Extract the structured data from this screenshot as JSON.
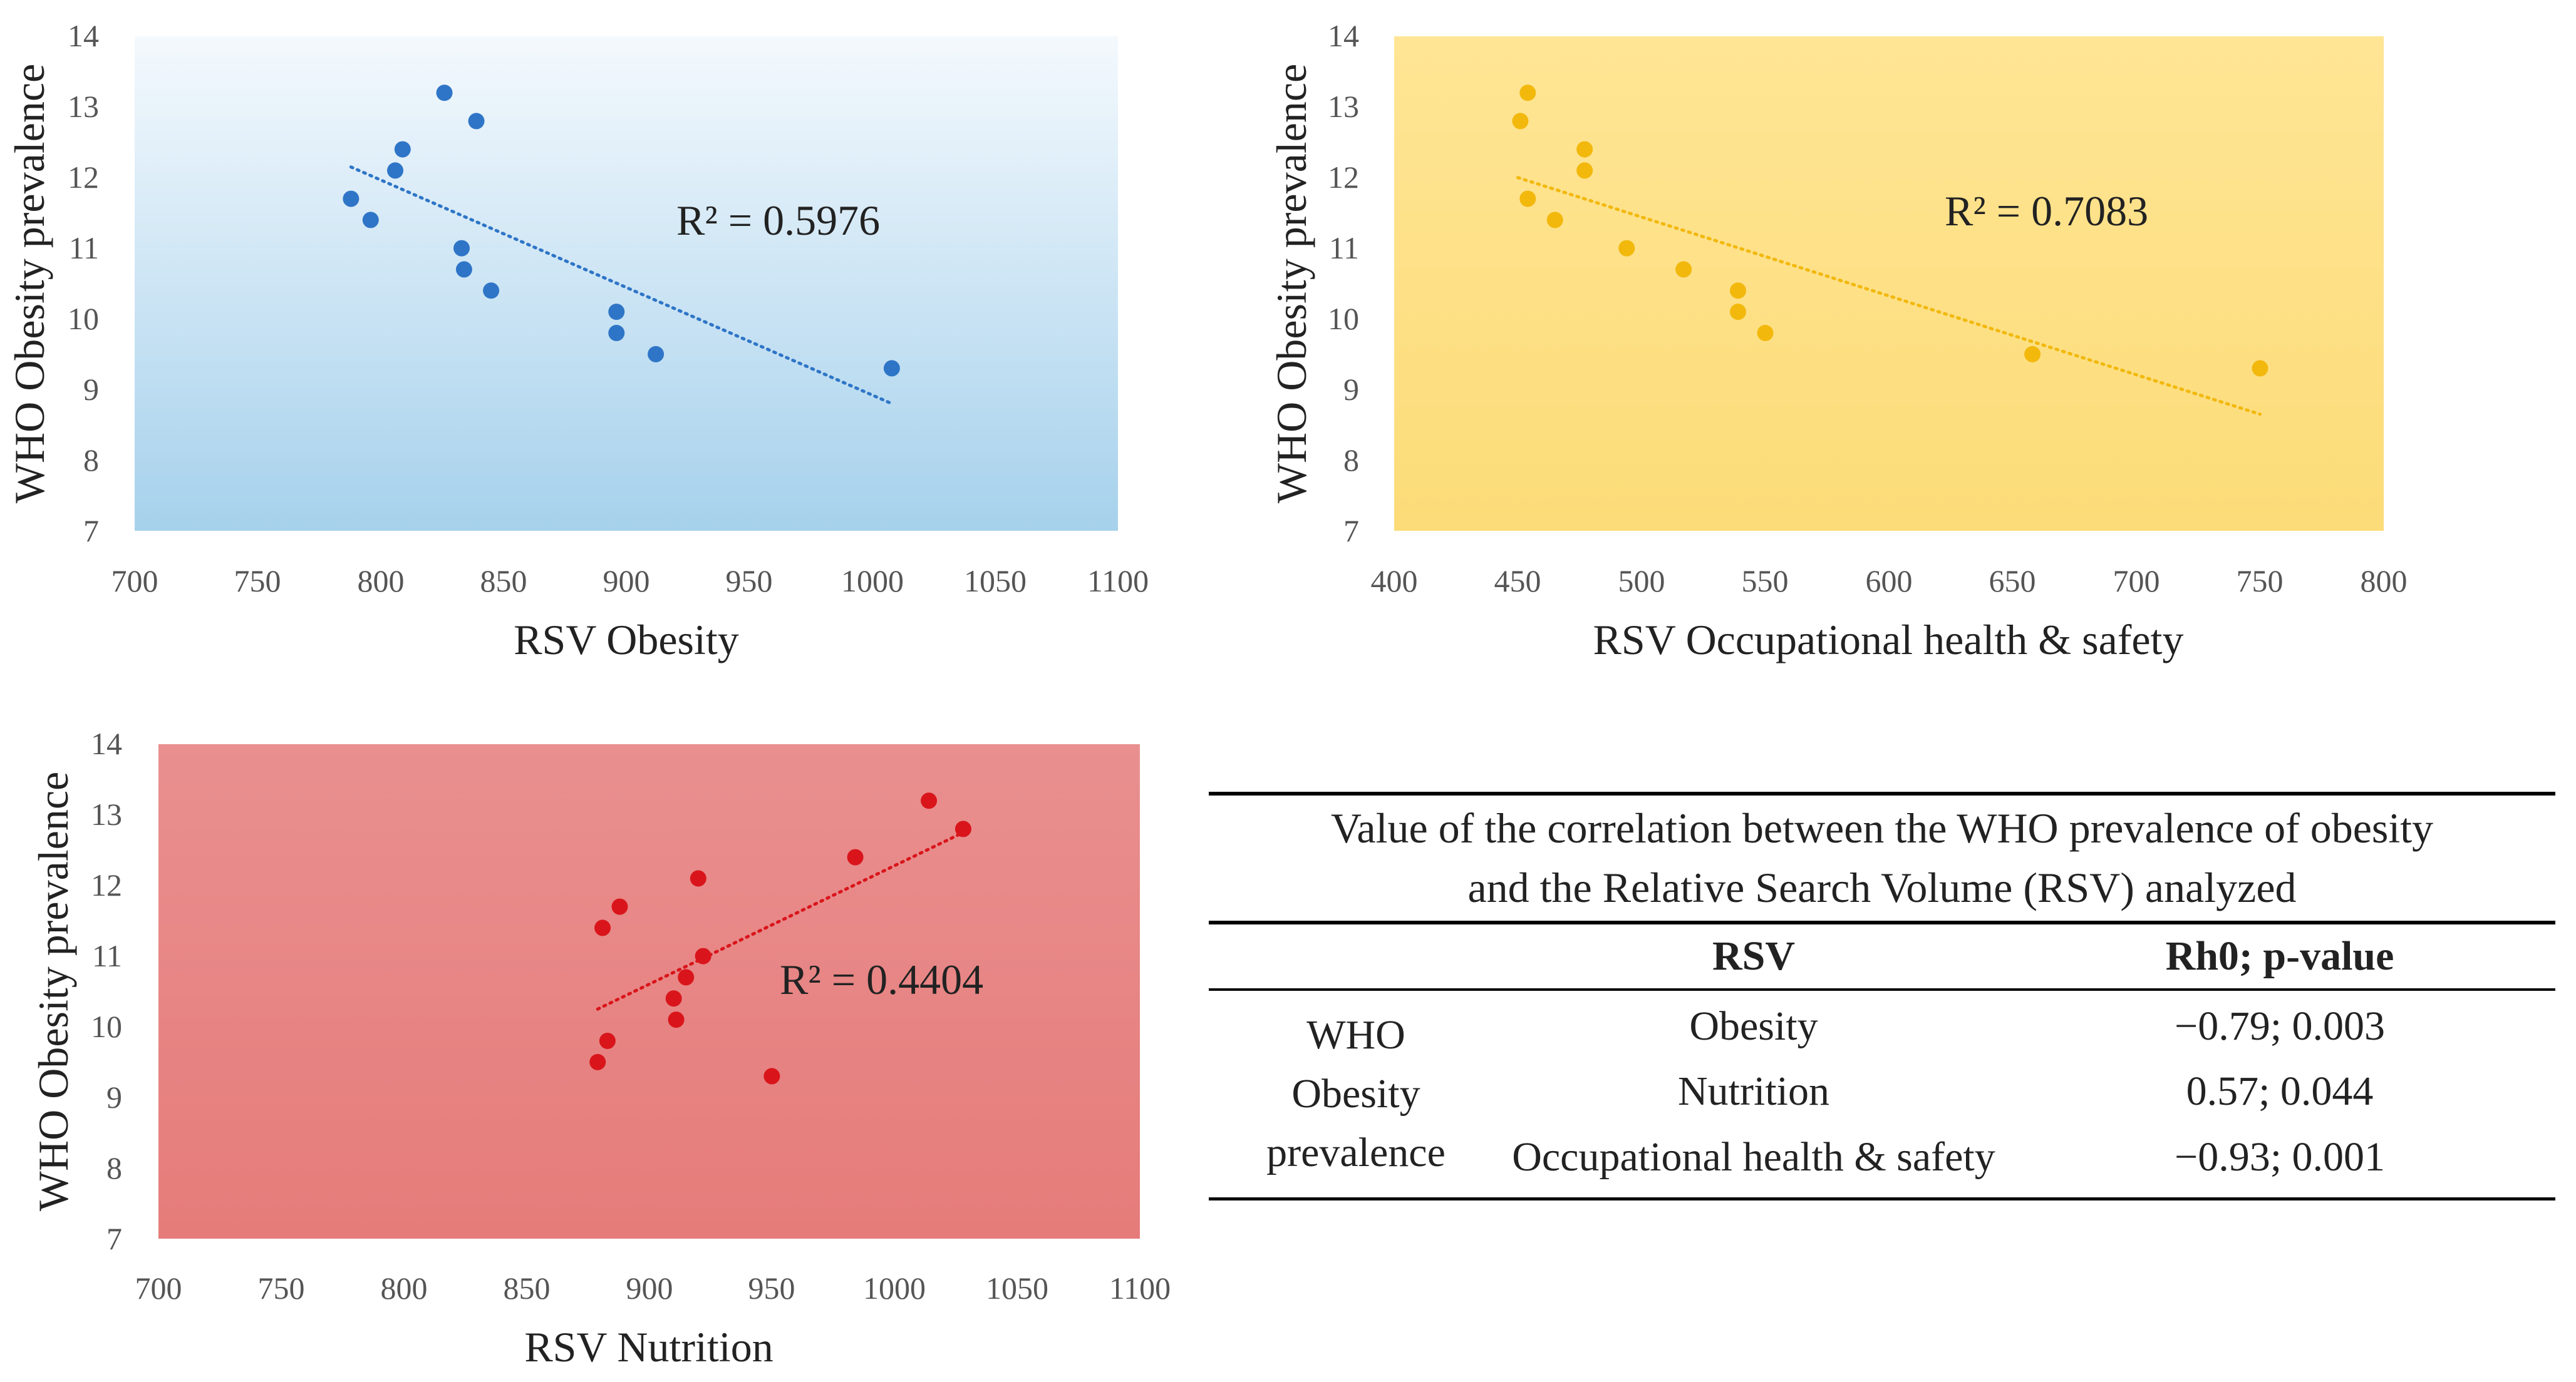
{
  "colors": {
    "blue_marker": "#2E75C7",
    "blue_bg_top": "#F4F9FD",
    "blue_bg_bottom": "#A6D1EC",
    "yellow_marker": "#F2B80C",
    "yellow_bg_top": "#FFE595",
    "yellow_bg_bottom": "#FCDC78",
    "red_marker": "#D9151B",
    "red_bg_top": "#E98F8F",
    "red_bg_bottom": "#E57C7A"
  },
  "chart_data": [
    {
      "type": "scatter",
      "title": "",
      "xlabel": "RSV Obesity",
      "ylabel": "WHO Obesity prevalence",
      "xlim": [
        700,
        1100
      ],
      "ylim": [
        7,
        14
      ],
      "xticks": [
        "700",
        "750",
        "800",
        "850",
        "900",
        "950",
        "1000",
        "1050",
        "1100"
      ],
      "yticks": [
        "7",
        "8",
        "9",
        "10",
        "11",
        "12",
        "13",
        "14"
      ],
      "points": [
        {
          "x": 788,
          "y": 11.7
        },
        {
          "x": 796,
          "y": 11.4
        },
        {
          "x": 806,
          "y": 12.1
        },
        {
          "x": 809,
          "y": 12.4
        },
        {
          "x": 826,
          "y": 13.2
        },
        {
          "x": 839,
          "y": 12.8
        },
        {
          "x": 833,
          "y": 11.0
        },
        {
          "x": 834,
          "y": 10.7
        },
        {
          "x": 845,
          "y": 10.4
        },
        {
          "x": 896,
          "y": 10.1
        },
        {
          "x": 896,
          "y": 9.8
        },
        {
          "x": 912,
          "y": 9.5
        },
        {
          "x": 1008,
          "y": 9.3
        }
      ],
      "trendline": {
        "x": [
          788,
          1008
        ],
        "y": [
          12.15,
          8.8
        ]
      },
      "r2_label": "R² = 0.5976",
      "grid": false
    },
    {
      "type": "scatter",
      "title": "",
      "xlabel": "RSV Occupational health & safety",
      "ylabel": "WHO Obesity prevalence",
      "xlim": [
        400,
        800
      ],
      "ylim": [
        7,
        14
      ],
      "xticks": [
        "400",
        "450",
        "500",
        "550",
        "600",
        "650",
        "700",
        "750",
        "800"
      ],
      "yticks": [
        "7",
        "8",
        "9",
        "10",
        "11",
        "12",
        "13",
        "14"
      ],
      "points": [
        {
          "x": 451,
          "y": 12.8
        },
        {
          "x": 454,
          "y": 13.2
        },
        {
          "x": 454,
          "y": 11.7
        },
        {
          "x": 465,
          "y": 11.4
        },
        {
          "x": 477,
          "y": 12.4
        },
        {
          "x": 477,
          "y": 12.1
        },
        {
          "x": 494,
          "y": 11.0
        },
        {
          "x": 517,
          "y": 10.7
        },
        {
          "x": 539,
          "y": 10.4
        },
        {
          "x": 539,
          "y": 10.1
        },
        {
          "x": 550,
          "y": 9.8
        },
        {
          "x": 658,
          "y": 9.5
        },
        {
          "x": 750,
          "y": 9.3
        }
      ],
      "trendline": {
        "x": [
          450,
          750
        ],
        "y": [
          12.0,
          8.65
        ]
      },
      "r2_label": "R² = 0.7083",
      "grid": false
    },
    {
      "type": "scatter",
      "title": "",
      "xlabel": "RSV Nutrition",
      "ylabel": "WHO Obesity prevalence",
      "xlim": [
        700,
        1100
      ],
      "ylim": [
        7,
        14
      ],
      "xticks": [
        "700",
        "750",
        "800",
        "850",
        "900",
        "950",
        "1000",
        "1050",
        "1100"
      ],
      "yticks": [
        "7",
        "8",
        "9",
        "10",
        "11",
        "12",
        "13",
        "14"
      ],
      "points": [
        {
          "x": 879,
          "y": 9.5
        },
        {
          "x": 883,
          "y": 9.8
        },
        {
          "x": 881,
          "y": 11.4
        },
        {
          "x": 888,
          "y": 11.7
        },
        {
          "x": 910,
          "y": 10.4
        },
        {
          "x": 911,
          "y": 10.1
        },
        {
          "x": 915,
          "y": 10.7
        },
        {
          "x": 920,
          "y": 12.1
        },
        {
          "x": 922,
          "y": 11.0
        },
        {
          "x": 950,
          "y": 9.3
        },
        {
          "x": 984,
          "y": 12.4
        },
        {
          "x": 1014,
          "y": 13.2
        },
        {
          "x": 1028,
          "y": 12.8
        }
      ],
      "trendline": {
        "x": [
          879,
          1028
        ],
        "y": [
          10.25,
          12.75
        ]
      },
      "r2_label": "R² = 0.4404",
      "grid": false
    }
  ],
  "table": {
    "caption_line1": "Value of the correlation between the WHO prevalence of obesity",
    "caption_line2": "and the Relative Search Volume (RSV) analyzed",
    "header_rsv": "RSV",
    "header_value": "Rh0; p-value",
    "row_label": [
      "WHO",
      "Obesity",
      "prevalence"
    ],
    "rows": [
      {
        "rsv": "Obesity",
        "value": "−0.79; 0.003"
      },
      {
        "rsv": "Nutrition",
        "value": "0.57; 0.044"
      },
      {
        "rsv": "Occupational health & safety",
        "value": "−0.93; 0.001"
      }
    ]
  }
}
